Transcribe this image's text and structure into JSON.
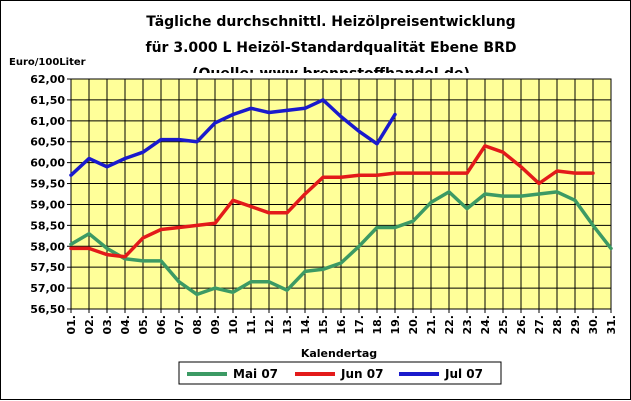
{
  "chart_data": {
    "type": "line",
    "title": [
      "Tägliche durchschnittl. Heizölpreisentwicklung",
      "für 3.000 L Heizöl-Standardqualität Ebene BRD",
      "(Quelle: www.brennstoffhandel.de)"
    ],
    "ylabel": "Euro/100Liter",
    "xlabel": "Kalendertag",
    "ylim": [
      56.5,
      62.0
    ],
    "yticks": [
      "56,50",
      "57,00",
      "57,50",
      "58,00",
      "58,50",
      "59,00",
      "59,50",
      "60,00",
      "60,50",
      "61,00",
      "61,50",
      "62,00"
    ],
    "categories": [
      "01.",
      "02.",
      "03.",
      "04.",
      "05.",
      "06.",
      "07.",
      "08.",
      "09.",
      "10.",
      "11.",
      "12.",
      "13.",
      "14.",
      "15.",
      "16.",
      "17.",
      "18.",
      "19.",
      "20.",
      "21.",
      "22.",
      "23.",
      "24.",
      "25.",
      "26.",
      "27.",
      "28.",
      "29.",
      "30.",
      "31."
    ],
    "grid": true,
    "legend_position": "bottom",
    "colors": {
      "plot_background": "#ffff99",
      "grid": "#000000"
    },
    "series": [
      {
        "name": "Mai 07",
        "color": "#3c9a64",
        "values": [
          58.05,
          58.3,
          57.95,
          57.7,
          57.65,
          57.65,
          57.15,
          56.85,
          57.0,
          56.9,
          57.15,
          57.15,
          56.95,
          57.4,
          57.45,
          57.6,
          58.0,
          58.45,
          58.45,
          58.6,
          59.05,
          59.3,
          58.9,
          59.25,
          59.2,
          59.2,
          59.25,
          59.3,
          59.1,
          58.5,
          57.95
        ]
      },
      {
        "name": "Jun 07",
        "color": "#e31a1a",
        "values": [
          57.95,
          57.95,
          57.8,
          57.75,
          58.2,
          58.4,
          58.45,
          58.5,
          58.55,
          59.1,
          58.95,
          58.8,
          58.8,
          59.25,
          59.65,
          59.65,
          59.7,
          59.7,
          59.75,
          59.75,
          59.75,
          59.75,
          59.75,
          60.4,
          60.25,
          59.9,
          59.5,
          59.8,
          59.75,
          59.75,
          null
        ]
      },
      {
        "name": "Jul 07",
        "color": "#1a1acc",
        "values": [
          59.7,
          60.1,
          59.9,
          60.1,
          60.25,
          60.55,
          60.55,
          60.5,
          60.95,
          61.15,
          61.3,
          61.2,
          61.25,
          61.3,
          61.5,
          61.1,
          60.75,
          60.45,
          61.15,
          null,
          null,
          null,
          null,
          null,
          null,
          null,
          null,
          null,
          null,
          null,
          null
        ]
      }
    ]
  }
}
